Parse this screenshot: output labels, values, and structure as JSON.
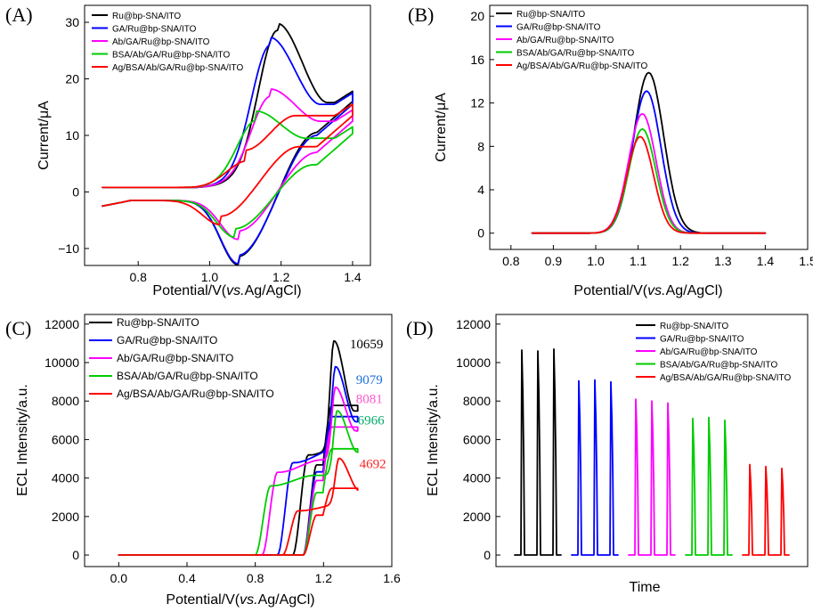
{
  "colors": [
    "#000000",
    "#0000ff",
    "#ff00ff",
    "#00cc00",
    "#ff0000"
  ],
  "chart_data": [
    {
      "panel": "(A)",
      "type": "line",
      "xlabel_parts": [
        "Potential/V(",
        "vs.",
        "Ag/AgCl)"
      ],
      "ylabel": "Current/μA",
      "xlim": [
        0.65,
        1.45
      ],
      "ylim": [
        -13,
        33
      ],
      "xticks": [
        "0.8",
        "1.0",
        "1.2",
        "1.4"
      ],
      "xtick_values": [
        0.8,
        1.0,
        1.2,
        1.4
      ],
      "yticks": [
        "−10",
        "0",
        "10",
        "20",
        "30"
      ],
      "ytick_values": [
        -10,
        0,
        10,
        20,
        30
      ],
      "series": [
        {
          "name": "Ru@bp-SNA/ITO",
          "params": {
            "anodic_peak_x": 1.19,
            "anodic_peak_y": 29.8,
            "cathodic_peak_x": 1.08,
            "cathodic_peak_y": -11.4,
            "end_high": 17.8,
            "end_low": 16.5
          }
        },
        {
          "name": "GA/Ru@bp-SNA/ITO",
          "params": {
            "anodic_peak_x": 1.17,
            "anodic_peak_y": 27.3,
            "cathodic_peak_x": 1.08,
            "cathodic_peak_y": -11.2,
            "end_high": 17.5,
            "end_low": 16.0
          }
        },
        {
          "name": "Ab/GA/Ru@bp-SNA/ITO",
          "params": {
            "anodic_peak_x": 1.17,
            "anodic_peak_y": 18.2,
            "cathodic_peak_x": 1.08,
            "cathodic_peak_y": -6.9,
            "end_high": 14.5,
            "end_low": 13.0
          }
        },
        {
          "name": "BSA/Ab/GA/Ru@bp-SNA/ITO",
          "params": {
            "anodic_peak_x": 1.13,
            "anodic_peak_y": 14.3,
            "cathodic_peak_x": 1.07,
            "cathodic_peak_y": -6.5,
            "end_high": 11.5,
            "end_low": 10.8
          }
        },
        {
          "name": "Ag/BSA/Ab/GA/Ru@bp-SNA/ITO",
          "params": {
            "anodic_peak_x": 1.1,
            "anodic_peak_y": 7.4,
            "cathodic_peak_x": 1.03,
            "cathodic_peak_y": -4.3,
            "end_high": 15.5,
            "end_low": 14.0
          }
        }
      ]
    },
    {
      "panel": "(B)",
      "type": "line",
      "xlabel_parts": [
        "Potential/V(",
        "vs.",
        "Ag/AgCl)"
      ],
      "ylabel": "Current/μA",
      "xlim": [
        0.75,
        1.5
      ],
      "ylim": [
        -1.5,
        21
      ],
      "xticks": [
        "0.8",
        "0.9",
        "1.0",
        "1.1",
        "1.2",
        "1.3",
        "1.4",
        "1.5"
      ],
      "xtick_values": [
        0.8,
        0.9,
        1.0,
        1.1,
        1.2,
        1.3,
        1.4,
        1.5
      ],
      "yticks": [
        "0",
        "4",
        "8",
        "12",
        "16",
        "20"
      ],
      "ytick_values": [
        0,
        4,
        8,
        12,
        16,
        20
      ],
      "x_start": 0.85,
      "x_end": 1.4,
      "series": [
        {
          "name": "Ru@bp-SNA/ITO",
          "peak_x": 1.125,
          "peak_y": 14.8,
          "width": 0.05
        },
        {
          "name": "GA/Ru@bp-SNA/ITO",
          "peak_x": 1.12,
          "peak_y": 13.1,
          "width": 0.048
        },
        {
          "name": "Ab/GA/Ru@bp-SNA/ITO",
          "peak_x": 1.11,
          "peak_y": 11.0,
          "width": 0.046
        },
        {
          "name": "BSA/Ab/GA/Ru@bp-SNA/ITO",
          "peak_x": 1.11,
          "peak_y": 9.6,
          "width": 0.045
        },
        {
          "name": "Ag/BSA/Ab/GA/Ru@bp-SNA/ITO",
          "peak_x": 1.105,
          "peak_y": 8.9,
          "width": 0.044
        }
      ]
    },
    {
      "panel": "(C)",
      "type": "line",
      "xlabel_parts": [
        "Potential/V(",
        "vs.",
        "Ag/AgCl)"
      ],
      "ylabel": "ECL Intensity/a.u.",
      "xlim": [
        -0.2,
        1.6
      ],
      "ylim": [
        -600,
        12500
      ],
      "xticks": [
        "0.0",
        "0.4",
        "0.8",
        "1.2",
        "1.6"
      ],
      "xtick_values": [
        0.0,
        0.4,
        0.8,
        1.2,
        1.6
      ],
      "yticks": [
        "0",
        "2000",
        "4000",
        "6000",
        "8000",
        "10000",
        "12000"
      ],
      "ytick_values": [
        0,
        2000,
        4000,
        6000,
        8000,
        10000,
        12000
      ],
      "peak_labels": [
        "10659",
        "9079",
        "8081",
        "6966",
        "4692"
      ],
      "label_colors": [
        "#000000",
        "#1e6fe0",
        "#ff55cc",
        "#00a86b",
        "#ff2222"
      ],
      "series": [
        {
          "name": "Ru@bp-SNA/ITO",
          "onset": 1.02,
          "shoulder": 5200,
          "peak_x": 1.26,
          "peak": 10659,
          "end": 6700
        },
        {
          "name": "GA/Ru@bp-SNA/ITO",
          "onset": 0.93,
          "shoulder": 4800,
          "peak_x": 1.27,
          "peak": 9079,
          "end": 6200
        },
        {
          "name": "Ab/GA/Ru@bp-SNA/ITO",
          "onset": 0.84,
          "shoulder": 4300,
          "peak_x": 1.27,
          "peak": 8081,
          "end": 5800
        },
        {
          "name": "BSA/Ab/GA/Ru@bp-SNA/ITO",
          "onset": 0.8,
          "shoulder": 3600,
          "peak_x": 1.28,
          "peak": 6966,
          "end": 4800
        },
        {
          "name": "Ag/BSA/Ab/GA/Ru@bp-SNA/ITO",
          "onset": 0.96,
          "shoulder": 2300,
          "peak_x": 1.29,
          "peak": 4692,
          "end": 3000
        }
      ]
    },
    {
      "panel": "(D)",
      "type": "line",
      "xlabel": "Time",
      "ylabel": "ECL Intensity/a.u.",
      "ylim": [
        -600,
        12500
      ],
      "yticks": [
        "0",
        "2000",
        "4000",
        "6000",
        "8000",
        "10000",
        "12000"
      ],
      "ytick_values": [
        0,
        2000,
        4000,
        6000,
        8000,
        10000,
        12000
      ],
      "series": [
        {
          "name": "Ru@bp-SNA/ITO",
          "peaks": [
            10650,
            10600,
            10700
          ]
        },
        {
          "name": "GA/Ru@bp-SNA/ITO",
          "peaks": [
            9050,
            9100,
            9000
          ]
        },
        {
          "name": "Ab/GA/Ru@bp-SNA/ITO",
          "peaks": [
            8100,
            8000,
            7900
          ]
        },
        {
          "name": "BSA/Ab/GA/Ru@bp-SNA/ITO",
          "peaks": [
            7100,
            7150,
            7000
          ]
        },
        {
          "name": "Ag/BSA/Ab/GA/Ru@bp-SNA/ITO",
          "peaks": [
            4700,
            4600,
            4500
          ]
        }
      ]
    }
  ]
}
